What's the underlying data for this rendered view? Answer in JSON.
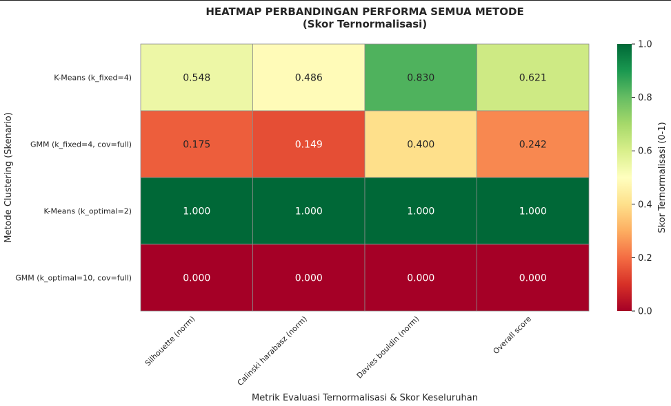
{
  "chart_data": {
    "type": "heatmap",
    "title": "HEATMAP PERBANDINGAN PERFORMA SEMUA METODE",
    "subtitle": "(Skor Ternormalisasi)",
    "xlabel": "Metrik Evaluasi Ternormalisasi & Skor Keseluruhan",
    "ylabel": "Metode Clustering (Skenario)",
    "columns": [
      "Silhouette (norm)",
      "Calinski harabasz (norm)",
      "Davies bouldin (norm)",
      "Overall score"
    ],
    "rows": [
      "K-Means (k_fixed=4)",
      "GMM (k_fixed=4, cov=full)",
      "K-Means (k_optimal=2)",
      "GMM (k_optimal=10, cov=full)"
    ],
    "values": [
      [
        0.548,
        0.486,
        0.83,
        0.621
      ],
      [
        0.175,
        0.149,
        0.4,
        0.242
      ],
      [
        1.0,
        1.0,
        1.0,
        1.0
      ],
      [
        0.0,
        0.0,
        0.0,
        0.0
      ]
    ],
    "value_labels": [
      [
        "0.548",
        "0.486",
        "0.830",
        "0.621"
      ],
      [
        "0.175",
        "0.149",
        "0.400",
        "0.242"
      ],
      [
        "1.000",
        "1.000",
        "1.000",
        "1.000"
      ],
      [
        "0.000",
        "0.000",
        "0.000",
        "0.000"
      ]
    ],
    "colorbar": {
      "label": "Skor Ternormalisasi (0-1)",
      "range": [
        0,
        1
      ],
      "ticks": [
        0.0,
        0.2,
        0.4,
        0.6,
        0.8,
        1.0
      ],
      "tick_labels": [
        "0.0",
        "0.2",
        "0.4",
        "0.6",
        "0.8",
        "1.0"
      ],
      "colormap": "RdYlGn"
    }
  }
}
